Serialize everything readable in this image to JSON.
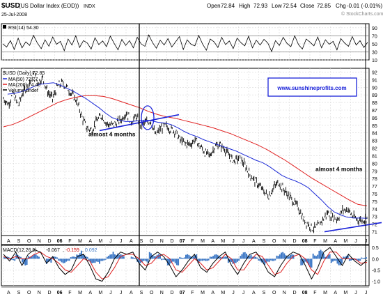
{
  "header": {
    "symbol": "$USD",
    "description": "(US Dollar Index (EOD))",
    "exchange": "INDX",
    "date": "25-Jul-2008",
    "quote": {
      "open": "72.84",
      "high": "72.93",
      "low": "72.54",
      "close": "72.85",
      "chg": "-0.01 (-0.01%)"
    },
    "open_label": "Open",
    "high_label": "High",
    "low_label": "Low",
    "close_label": "Close",
    "chg_label": "Chg",
    "watermark": "© StockCharts.com"
  },
  "colors": {
    "price_bar": "#000000",
    "ma50": "#1d2bd6",
    "ma200": "#e02020",
    "trendline": "#1a22d8",
    "macd_hist": "#3d78c6",
    "macd_line": "#000000",
    "signal_line": "#e02020",
    "rsi_fill_low": "#9a8e8e",
    "rsi_fill_high": "#9a8e8e",
    "banner_border": "#1a22d8",
    "banner_text": "#1a22d8"
  },
  "chart_data": [
    {
      "type": "line",
      "panel": "rsi",
      "title": "RSI(14) 54.30",
      "ylim": [
        10,
        100
      ],
      "y_ticks": [
        90,
        70,
        50,
        30,
        10
      ],
      "reference_lines": [
        70,
        30
      ],
      "series": [
        {
          "name": "RSI(14)",
          "values": [
            50,
            42,
            58,
            36,
            64,
            40,
            55,
            46,
            71,
            52,
            38,
            60,
            44,
            67,
            49,
            56,
            33,
            62,
            47,
            70,
            41,
            58,
            52,
            37,
            65,
            48,
            57,
            43,
            69,
            51,
            35,
            61,
            46,
            58,
            40,
            66,
            50,
            44,
            72,
            53,
            39,
            59,
            47,
            63,
            42,
            55,
            68,
            36,
            60,
            49,
            45,
            71,
            50,
            34,
            62,
            55,
            41,
            66,
            48,
            57,
            38,
            64,
            53,
            45,
            69,
            40,
            59,
            47,
            61,
            52,
            31,
            58,
            46,
            66,
            51,
            43,
            70,
            48,
            37,
            62,
            54,
            45,
            67,
            40,
            60,
            49,
            56,
            35,
            63,
            52,
            44,
            68,
            47,
            58,
            41,
            54
          ]
        }
      ]
    },
    {
      "type": "line",
      "panel": "price",
      "title": "$USD (Daily) 72.85",
      "ylim": [
        70.5,
        92.5
      ],
      "y_ticks": [
        92,
        91,
        90,
        89,
        88,
        87,
        86,
        85,
        84,
        83,
        82,
        81,
        80,
        79,
        78,
        77,
        76,
        75,
        74,
        73,
        72,
        71
      ],
      "x_labels": [
        "A",
        "S",
        "O",
        "N",
        "D",
        "06",
        "F",
        "M",
        "A",
        "M",
        "J",
        "J",
        "A",
        "S",
        "O",
        "N",
        "D",
        "07",
        "F",
        "M",
        "A",
        "M",
        "J",
        "J",
        "A",
        "S",
        "O",
        "N",
        "D",
        "08",
        "F",
        "M",
        "A",
        "M",
        "J",
        "J"
      ],
      "series": [
        {
          "name": "$USD (Daily) 72.85",
          "values": [
            88.5,
            87.8,
            89.2,
            87.6,
            89.4,
            90.2,
            91.6,
            90.8,
            91.2,
            89.4,
            88.5,
            90.1,
            90.6,
            89.9,
            89.0,
            88.1,
            86.0,
            84.6,
            84.4,
            85.6,
            86.3,
            85.2,
            85.0,
            85.3,
            85.8,
            86.7,
            85.5,
            86.1,
            85.0,
            85.4,
            85.6,
            83.6,
            84.6,
            84.9,
            84.5,
            84.2,
            83.0,
            82.6,
            82.5,
            83.1,
            82.3,
            81.4,
            81.0,
            82.2,
            82.4,
            81.9,
            80.9,
            80.3,
            80.7,
            79.9,
            78.7,
            77.8,
            77.1,
            76.3,
            75.7,
            76.8,
            77.5,
            76.6,
            75.8,
            75.0,
            74.2,
            72.7,
            72.0,
            71.4,
            71.7,
            72.6,
            73.5,
            72.9,
            72.7,
            73.8,
            74.0,
            73.1,
            72.6,
            72.5,
            72.85
          ]
        },
        {
          "name": "MA(50) 72.77",
          "values": [
            89.1,
            89.2,
            89.4,
            89.7,
            90.1,
            90.4,
            90.5,
            90.6,
            90.3,
            89.9,
            89.5,
            89.0,
            88.5,
            87.9,
            87.3,
            86.6,
            86.0,
            85.7,
            85.5,
            85.5,
            85.6,
            85.7,
            85.6,
            85.4,
            85.3,
            85.1,
            84.7,
            84.2,
            83.8,
            83.5,
            83.1,
            82.8,
            82.5,
            82.2,
            81.9,
            81.6,
            81.2,
            80.8,
            80.4,
            80.1,
            79.6,
            79.0,
            78.4,
            78.0,
            77.7,
            77.3,
            76.8,
            76.0,
            75.2,
            74.3,
            73.6,
            73.2,
            72.9,
            72.8,
            72.8,
            72.77
          ]
        },
        {
          "name": "MA(200) 74.40",
          "values": [
            84.8,
            85.1,
            85.6,
            86.2,
            86.8,
            87.4,
            88.0,
            88.4,
            88.7,
            88.9,
            88.9,
            88.8,
            88.5,
            88.1,
            87.7,
            87.3,
            86.8,
            86.4,
            86.1,
            85.9,
            85.6,
            85.3,
            85.0,
            84.7,
            84.3,
            83.9,
            83.4,
            82.9,
            82.4,
            81.8,
            81.1,
            80.4,
            79.6,
            78.8,
            78.0,
            77.3,
            76.6,
            75.9,
            75.2,
            74.6,
            74.4
          ]
        },
        {
          "name": "Volume undef",
          "values": []
        }
      ],
      "annotations": [
        "almost 4 months",
        "almost 4 months"
      ],
      "banner": "www.sunshineprofits.com"
    },
    {
      "type": "line",
      "panel": "macd",
      "title": "MACD(12,26,9)",
      "macd_value": "-0.067",
      "signal_value": "-0.159",
      "hist_value": "0.092",
      "ylim": [
        -1.2,
        0.6
      ],
      "y_ticks": [
        "0.5",
        "0.0",
        "-0.5",
        "-1.0"
      ],
      "series": [
        {
          "name": "MACD",
          "values": [
            0.2,
            -0.1,
            0.3,
            -0.3,
            0.2,
            0.4,
            0.3,
            -0.2,
            0.1,
            -0.4,
            -0.7,
            -0.5,
            0.1,
            0.2,
            -0.3,
            -0.9,
            -1.0,
            -0.6,
            0.0,
            0.3,
            0.2,
            0.3,
            -0.2,
            -0.5,
            0.1,
            0.3,
            0.1,
            -0.3,
            -0.8,
            -0.5,
            -0.1,
            0.2,
            -0.4,
            -0.6,
            -0.2,
            0.1,
            0.3,
            -0.3,
            -0.7,
            -0.2,
            0.2,
            0.3,
            -0.1,
            -0.6,
            -0.8,
            -0.3,
            0.1,
            0.3,
            0.2,
            -0.3,
            -0.9,
            -0.4,
            0.3,
            0.5,
            0.1,
            -0.3,
            0.2,
            -0.1,
            -0.3,
            -0.067
          ]
        },
        {
          "name": "Signal",
          "values": [
            0.1,
            0.0,
            0.1,
            0.0,
            0.0,
            0.2,
            0.3,
            0.1,
            0.0,
            -0.2,
            -0.5,
            -0.6,
            -0.3,
            0.0,
            -0.1,
            -0.6,
            -0.9,
            -0.8,
            -0.4,
            0.1,
            0.2,
            0.2,
            0.0,
            -0.3,
            -0.2,
            0.1,
            0.2,
            0.0,
            -0.5,
            -0.6,
            -0.3,
            0.0,
            -0.2,
            -0.5,
            -0.4,
            -0.1,
            0.2,
            0.0,
            -0.5,
            -0.5,
            -0.1,
            0.2,
            0.1,
            -0.3,
            -0.7,
            -0.6,
            -0.2,
            0.1,
            0.2,
            0.0,
            -0.5,
            -0.7,
            -0.1,
            0.3,
            0.3,
            0.0,
            0.0,
            0.0,
            -0.2,
            -0.159
          ]
        },
        {
          "name": "Histogram",
          "values": [
            0.1,
            -0.1,
            0.2,
            -0.3,
            0.2,
            0.2,
            0.0,
            -0.3,
            0.1,
            -0.2,
            -0.2,
            0.1,
            0.4,
            0.2,
            -0.2,
            -0.3,
            -0.1,
            0.2,
            0.4,
            0.2,
            0.0,
            0.1,
            -0.2,
            -0.2,
            0.3,
            0.2,
            -0.1,
            -0.3,
            -0.3,
            0.1,
            0.2,
            0.2,
            -0.2,
            -0.1,
            0.2,
            0.2,
            0.1,
            -0.3,
            -0.2,
            0.3,
            0.3,
            0.1,
            -0.2,
            -0.3,
            -0.1,
            0.3,
            0.3,
            0.2,
            0.0,
            -0.3,
            -0.4,
            0.3,
            0.4,
            0.2,
            -0.2,
            -0.3,
            0.2,
            -0.1,
            -0.1,
            0.092
          ]
        }
      ]
    }
  ]
}
